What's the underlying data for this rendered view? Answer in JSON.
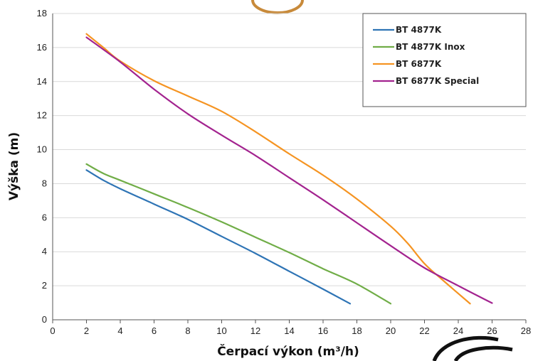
{
  "chart_data": {
    "type": "line",
    "title": "",
    "xlabel": "Čerpací výkon (m³/h)",
    "ylabel": "Výška (m)",
    "xlim": [
      0,
      28
    ],
    "ylim": [
      0,
      18
    ],
    "xticks": [
      "0",
      "2",
      "4",
      "6",
      "8",
      "10",
      "12",
      "14",
      "16",
      "18",
      "20",
      "22",
      "24",
      "26",
      "28"
    ],
    "yticks": [
      "0",
      "2",
      "4",
      "6",
      "8",
      "10",
      "12",
      "14",
      "16",
      "18"
    ],
    "grid": "horizontal",
    "legend_position": "top-right",
    "series": [
      {
        "name": "BT 4877K",
        "color": "#2e74b5",
        "x": [
          2,
          3,
          4,
          6,
          8,
          10,
          12,
          14,
          16,
          17.6
        ],
        "y": [
          8.8,
          8.2,
          7.7,
          6.8,
          5.9,
          4.9,
          3.9,
          2.85,
          1.8,
          0.95
        ]
      },
      {
        "name": "BT 4877K Inox",
        "color": "#70ad47",
        "x": [
          2,
          3,
          4,
          6,
          8,
          10,
          12,
          14,
          16,
          18,
          20
        ],
        "y": [
          9.15,
          8.6,
          8.2,
          7.4,
          6.6,
          5.75,
          4.85,
          3.95,
          3.0,
          2.1,
          0.95
        ]
      },
      {
        "name": "BT 6877K",
        "color": "#f59422",
        "x": [
          2,
          3,
          4,
          6,
          8,
          10,
          12,
          14,
          16,
          18,
          20,
          21,
          22,
          23,
          24.7
        ],
        "y": [
          16.8,
          16.0,
          15.2,
          14.05,
          13.15,
          12.25,
          11.05,
          9.75,
          8.5,
          7.1,
          5.5,
          4.5,
          3.3,
          2.4,
          0.95
        ]
      },
      {
        "name": "BT 6877K Special",
        "color": "#a3238f",
        "x": [
          2,
          4,
          6,
          8,
          10,
          12,
          14,
          16,
          18,
          20,
          22,
          24,
          26
        ],
        "y": [
          16.6,
          15.15,
          13.55,
          12.1,
          10.85,
          9.65,
          8.35,
          7.05,
          5.7,
          4.35,
          3.05,
          2.0,
          0.98
        ]
      }
    ]
  }
}
